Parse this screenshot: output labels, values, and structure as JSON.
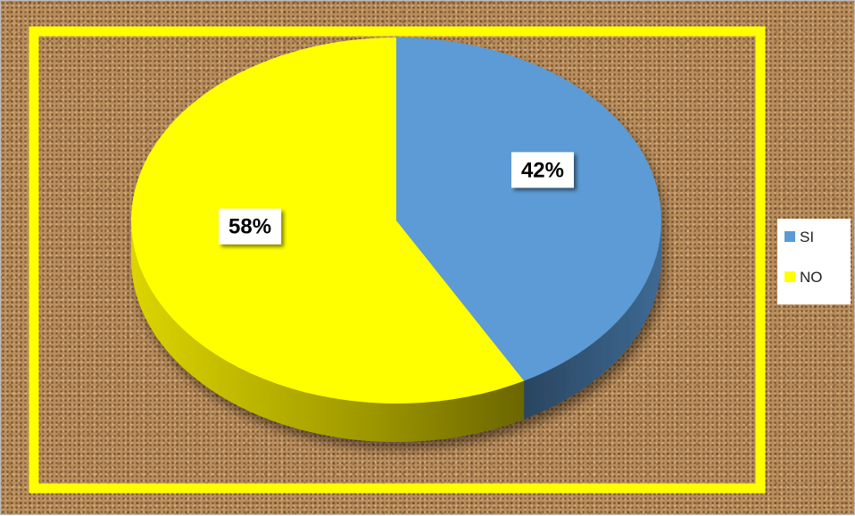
{
  "chart_data": {
    "type": "pie",
    "labels": [
      "SI",
      "NO"
    ],
    "values": [
      42,
      58
    ],
    "data_labels": [
      "42%",
      "58%"
    ],
    "colors": [
      "#5b9bd5",
      "#ffff00"
    ],
    "side_colors": [
      "#2c4a68",
      "#b5b000"
    ],
    "frame_color": "#ffff00",
    "legend": {
      "position": "right",
      "entries": [
        "SI",
        "NO"
      ]
    },
    "style": "3d-exploded-tilt"
  }
}
